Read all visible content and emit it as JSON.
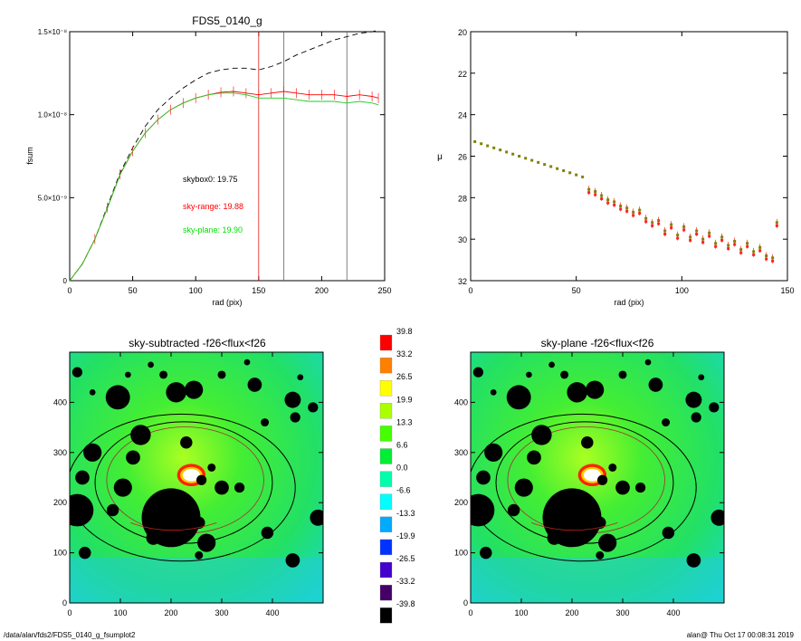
{
  "footer": {
    "path": "/data/alan/fds2/FDS5_0140_g_fsumplot2",
    "stamp": "alan@  Thu Oct 17 00:08:31 2019"
  },
  "chart_data": [
    {
      "type": "line",
      "title": "FDS5_0140_g",
      "xlabel": "rad (pix)",
      "ylabel": "fsum",
      "xlim": [
        0,
        250
      ],
      "ylim": [
        0,
        1.5e-08
      ],
      "xticks": [
        0,
        50,
        100,
        150,
        200,
        250
      ],
      "yticks": [
        0,
        5e-09,
        1e-08,
        1.5e-08
      ],
      "ytick_labels": [
        "0",
        "5.0×10⁻⁹",
        "1.0×10⁻⁸",
        "1.5×10⁻⁸"
      ],
      "grid": false,
      "vlines": [
        {
          "x": 150,
          "color": "#e02020"
        },
        {
          "x": 170,
          "color": "#606060"
        },
        {
          "x": 220,
          "color": "#606060"
        }
      ],
      "annotations": [
        {
          "text": "skybox0: 19.75",
          "color": "#000000"
        },
        {
          "text": "sky-range: 19.88",
          "color": "#ff0000"
        },
        {
          "text": "sky-plane: 19.90",
          "color": "#00dd00"
        }
      ],
      "series": [
        {
          "style": "dashed",
          "color": "#000000",
          "x": [
            0,
            10,
            20,
            30,
            40,
            50,
            60,
            70,
            80,
            90,
            100,
            110,
            120,
            130,
            140,
            150,
            160,
            170,
            180,
            190,
            200,
            210,
            220,
            230,
            240,
            245
          ],
          "y": [
            0,
            1e-09,
            2.5e-09,
            4.5e-09,
            6.5e-09,
            8e-09,
            9.3e-09,
            1.03e-08,
            1.1e-08,
            1.16e-08,
            1.21e-08,
            1.25e-08,
            1.27e-08,
            1.28e-08,
            1.28e-08,
            1.27e-08,
            1.29e-08,
            1.32e-08,
            1.36e-08,
            1.39e-08,
            1.42e-08,
            1.45e-08,
            1.47e-08,
            1.49e-08,
            1.5e-08,
            1.51e-08
          ]
        },
        {
          "style": "errorbars",
          "color": "#ff0000",
          "x": [
            0,
            10,
            20,
            30,
            40,
            50,
            60,
            70,
            80,
            90,
            100,
            110,
            120,
            130,
            140,
            150,
            160,
            170,
            180,
            190,
            200,
            210,
            220,
            230,
            240,
            245
          ],
          "y": [
            0,
            1e-09,
            2.5e-09,
            4.4e-09,
            6.4e-09,
            7.8e-09,
            8.9e-09,
            9.7e-09,
            1.03e-08,
            1.07e-08,
            1.1e-08,
            1.12e-08,
            1.135e-08,
            1.14e-08,
            1.13e-08,
            1.12e-08,
            1.13e-08,
            1.14e-08,
            1.13e-08,
            1.12e-08,
            1.12e-08,
            1.12e-08,
            1.11e-08,
            1.12e-08,
            1.11e-08,
            1.1e-08
          ]
        },
        {
          "style": "solid",
          "color": "#22cc22",
          "x": [
            0,
            10,
            20,
            30,
            40,
            50,
            60,
            70,
            80,
            90,
            100,
            110,
            120,
            130,
            140,
            150,
            160,
            170,
            180,
            190,
            200,
            210,
            220,
            230,
            240,
            245
          ],
          "y": [
            0,
            1e-09,
            2.5e-09,
            4.4e-09,
            6.4e-09,
            7.8e-09,
            8.9e-09,
            9.7e-09,
            1.03e-08,
            1.07e-08,
            1.1e-08,
            1.12e-08,
            1.13e-08,
            1.13e-08,
            1.12e-08,
            1.1e-08,
            1.1e-08,
            1.1e-08,
            1.09e-08,
            1.08e-08,
            1.08e-08,
            1.08e-08,
            1.07e-08,
            1.08e-08,
            1.07e-08,
            1.06e-08
          ]
        }
      ]
    },
    {
      "type": "scatter",
      "title": "",
      "xlabel": "rad (pix)",
      "ylabel": "μ",
      "xlim": [
        0,
        150
      ],
      "ylim": [
        32,
        20
      ],
      "xticks": [
        0,
        50,
        100,
        150
      ],
      "yticks": [
        20,
        22,
        24,
        26,
        28,
        30,
        32
      ],
      "grid": false,
      "series": [
        {
          "color": "#808000",
          "x": [
            2,
            5,
            8,
            11,
            14,
            17,
            20,
            23,
            26,
            29,
            32,
            35,
            38,
            41,
            44,
            47,
            50,
            53,
            56,
            59,
            62,
            65,
            68,
            71,
            74,
            77,
            80,
            83,
            86,
            89,
            92,
            95,
            98,
            101,
            104,
            107,
            110,
            113,
            116,
            119,
            122,
            125,
            128,
            131,
            134,
            137,
            140,
            143,
            145
          ],
          "y": [
            25.3,
            25.4,
            25.5,
            25.6,
            25.7,
            25.8,
            25.9,
            26.0,
            26.1,
            26.2,
            26.3,
            26.4,
            26.5,
            26.6,
            26.7,
            26.8,
            26.9,
            27.0,
            27.6,
            27.7,
            27.9,
            28.1,
            28.2,
            28.4,
            28.5,
            28.7,
            28.6,
            29.0,
            29.2,
            29.1,
            29.6,
            29.3,
            29.8,
            29.4,
            29.9,
            29.6,
            30.0,
            29.7,
            30.2,
            29.9,
            30.3,
            30.1,
            30.5,
            30.2,
            30.6,
            30.4,
            30.8,
            30.9,
            29.2
          ]
        }
      ]
    },
    {
      "type": "heatmap",
      "title": "sky-subtracted -f26<flux<f26",
      "xlim": [
        0,
        500
      ],
      "ylim": [
        0,
        500
      ],
      "xticks": [
        0,
        100,
        200,
        300,
        400
      ],
      "yticks": [
        0,
        100,
        200,
        300,
        400
      ]
    },
    {
      "type": "heatmap",
      "title": "sky-plane -f26<flux<f26",
      "xlim": [
        0,
        500
      ],
      "ylim": [
        0,
        500
      ],
      "xticks": [
        0,
        100,
        200,
        300,
        400
      ],
      "yticks": [
        0,
        100,
        200,
        300,
        400
      ]
    },
    {
      "type": "colorbar",
      "labels": [
        "39.8",
        "33.2",
        "26.5",
        "19.9",
        "13.3",
        "6.6",
        "0.0",
        "-6.6",
        "-13.3",
        "-19.9",
        "-26.5",
        "-33.2",
        "-39.8"
      ],
      "colors": [
        "#ff0000",
        "#ff8000",
        "#ffff00",
        "#aaff00",
        "#44ff00",
        "#00ee33",
        "#00ffaa",
        "#00ffff",
        "#00aaff",
        "#0033ff",
        "#4400cc",
        "#440066",
        "#000000"
      ]
    }
  ]
}
